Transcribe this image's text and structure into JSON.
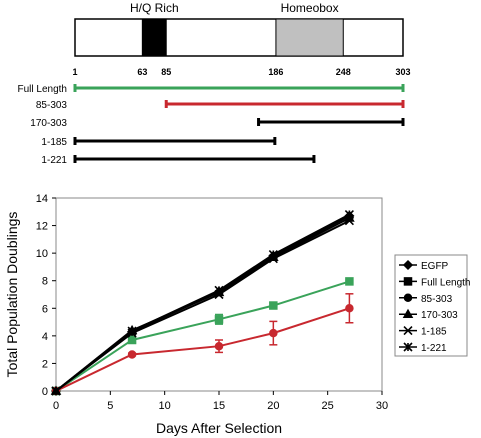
{
  "diagram": {
    "domains": [
      {
        "label": "H/Q Rich",
        "start": 63,
        "end": 85,
        "color": "#000000"
      },
      {
        "label": "Homeobox",
        "start": 186,
        "end": 248,
        "color": "#c0c0c0"
      }
    ],
    "position_ticks": [
      "1",
      "63",
      "85",
      "186",
      "248",
      "303"
    ],
    "constructs": [
      {
        "label": "Full Length",
        "start": 1,
        "end": 303,
        "color": "#3aa35a"
      },
      {
        "label": "85-303",
        "start": 85,
        "end": 303,
        "color": "#c8282f"
      },
      {
        "label": "170-303",
        "start": 170,
        "end": 303,
        "color": "#000000"
      },
      {
        "label": "1-185",
        "start": 1,
        "end": 185,
        "color": "#000000"
      },
      {
        "label": "1-221",
        "start": 1,
        "end": 221,
        "color": "#000000"
      }
    ]
  },
  "chart_data": {
    "type": "line",
    "xlabel": "Days After Selection",
    "ylabel": "Total Population Doublings",
    "xlim": [
      0,
      30
    ],
    "ylim": [
      0,
      14
    ],
    "xticks": [
      "0",
      "5",
      "10",
      "15",
      "20",
      "25",
      "30"
    ],
    "yticks": [
      "0",
      "2",
      "4",
      "6",
      "8",
      "10",
      "12",
      "14"
    ],
    "legend_position": "right",
    "series": [
      {
        "name": "EGFP",
        "marker": "diamond",
        "color": "#000000",
        "x": [
          0,
          7,
          15,
          20,
          27
        ],
        "y": [
          0,
          4.3,
          7.2,
          9.8,
          12.7
        ],
        "err": [
          0,
          0,
          0,
          0,
          0
        ]
      },
      {
        "name": "Full Length",
        "marker": "square",
        "color": "#3aa35a",
        "x": [
          0,
          7,
          15,
          20,
          27
        ],
        "y": [
          0,
          3.7,
          5.2,
          6.2,
          7.95
        ],
        "err": [
          0,
          0.2,
          0.35,
          0.2,
          0.1
        ]
      },
      {
        "name": "85-303",
        "marker": "circle",
        "color": "#c8282f",
        "x": [
          0,
          7,
          15,
          20,
          27
        ],
        "y": [
          0,
          2.65,
          3.25,
          4.2,
          6.0
        ],
        "err": [
          0,
          0.1,
          0.45,
          0.85,
          1.05
        ]
      },
      {
        "name": "170-303",
        "marker": "triangle",
        "color": "#000000",
        "x": [
          0,
          7,
          15,
          20,
          27
        ],
        "y": [
          0,
          4.4,
          7.15,
          9.7,
          12.55
        ],
        "err": [
          0,
          0,
          0,
          0,
          0
        ]
      },
      {
        "name": "1-185",
        "marker": "x",
        "color": "#000000",
        "x": [
          0,
          7,
          15,
          20,
          27
        ],
        "y": [
          0,
          4.2,
          7.0,
          9.6,
          12.35
        ],
        "err": [
          0,
          0,
          0,
          0,
          0
        ]
      },
      {
        "name": "1-221",
        "marker": "asterisk",
        "color": "#000000",
        "x": [
          0,
          7,
          15,
          20,
          27
        ],
        "y": [
          0,
          4.35,
          7.3,
          9.9,
          12.8
        ],
        "err": [
          0,
          0,
          0,
          0,
          0
        ]
      }
    ]
  }
}
